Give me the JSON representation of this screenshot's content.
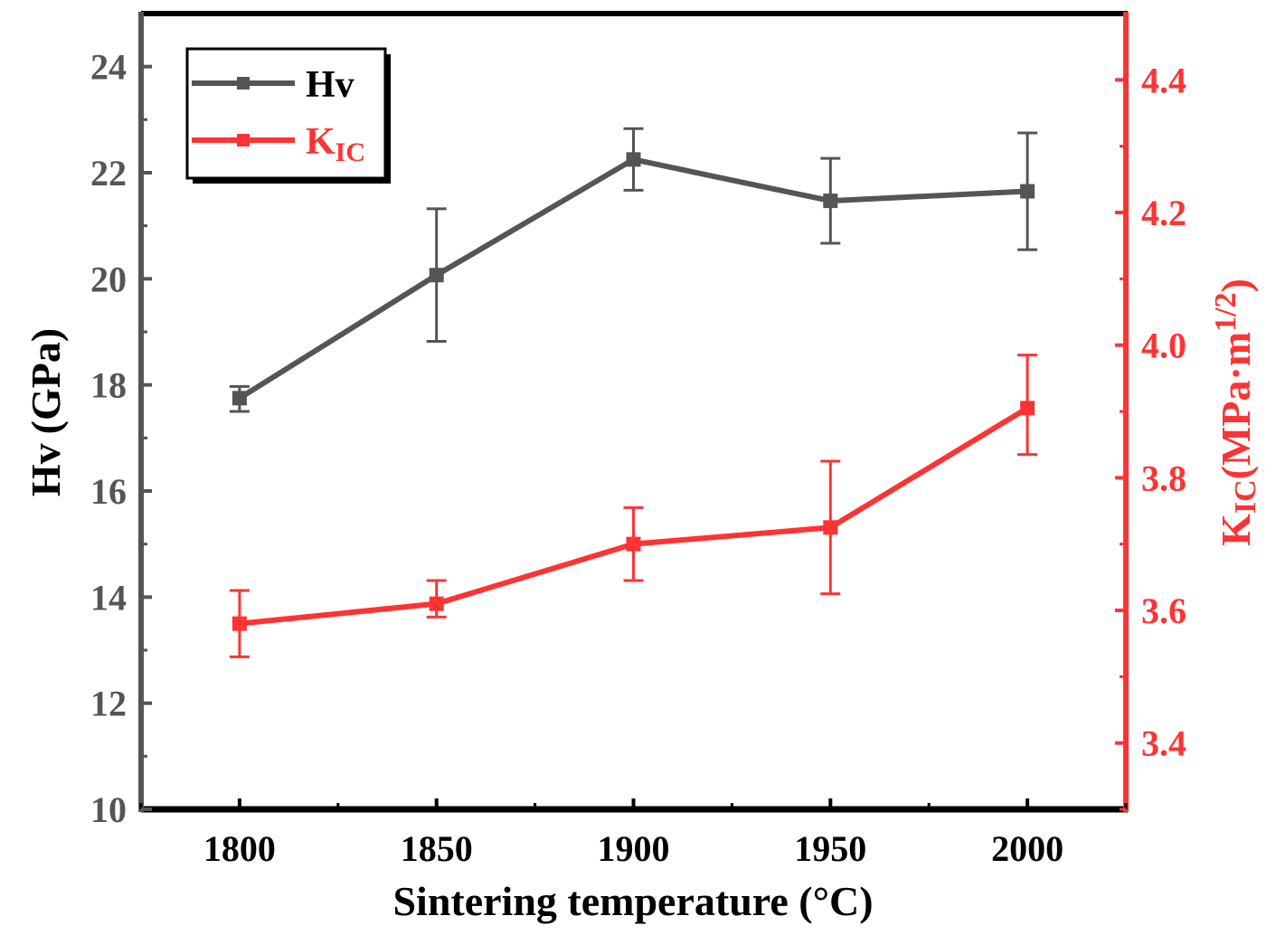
{
  "chart_data": {
    "type": "line",
    "xlabel": "Sintering temperature (°C)",
    "x": [
      1800,
      1850,
      1900,
      1950,
      2000
    ],
    "xticks": [
      "1800",
      "1850",
      "1900",
      "1950",
      "2000"
    ],
    "xlim": [
      1775,
      2025
    ],
    "y_left": {
      "label_main": "Hv",
      "label_unit": "(GPa)",
      "lim": [
        10,
        25
      ],
      "ticks": [
        "10",
        "12",
        "14",
        "16",
        "18",
        "20",
        "22",
        "24"
      ],
      "tick_values": [
        10,
        12,
        14,
        16,
        18,
        20,
        22,
        24
      ],
      "color": "#555555"
    },
    "y_right": {
      "label_main": "K",
      "label_sub": "IC",
      "label_unit": "(MPa·m",
      "label_sup": "1/2",
      "label_close": ")",
      "lim": [
        3.3,
        4.5
      ],
      "ticks": [
        "3.4",
        "3.6",
        "3.8",
        "4.0",
        "4.2",
        "4.4"
      ],
      "tick_values": [
        3.4,
        3.6,
        3.8,
        4.0,
        4.2,
        4.4
      ],
      "color": "#ff3333"
    },
    "series": [
      {
        "name": "Hv",
        "axis": "left",
        "color": "#555555",
        "values": [
          17.75,
          20.07,
          22.25,
          21.47,
          21.65
        ],
        "err_lower": [
          0.25,
          1.25,
          0.58,
          0.8,
          1.1
        ],
        "err_upper": [
          0.22,
          1.25,
          0.58,
          0.8,
          1.1
        ]
      },
      {
        "name": "K",
        "name_sub": "IC",
        "axis": "right",
        "color": "#ff3333",
        "values": [
          3.58,
          3.61,
          3.7,
          3.725,
          3.905
        ],
        "err_lower": [
          0.05,
          0.02,
          0.055,
          0.1,
          0.07
        ],
        "err_upper": [
          0.05,
          0.035,
          0.055,
          0.1,
          0.08
        ]
      }
    ],
    "legend_position": "top-left"
  }
}
